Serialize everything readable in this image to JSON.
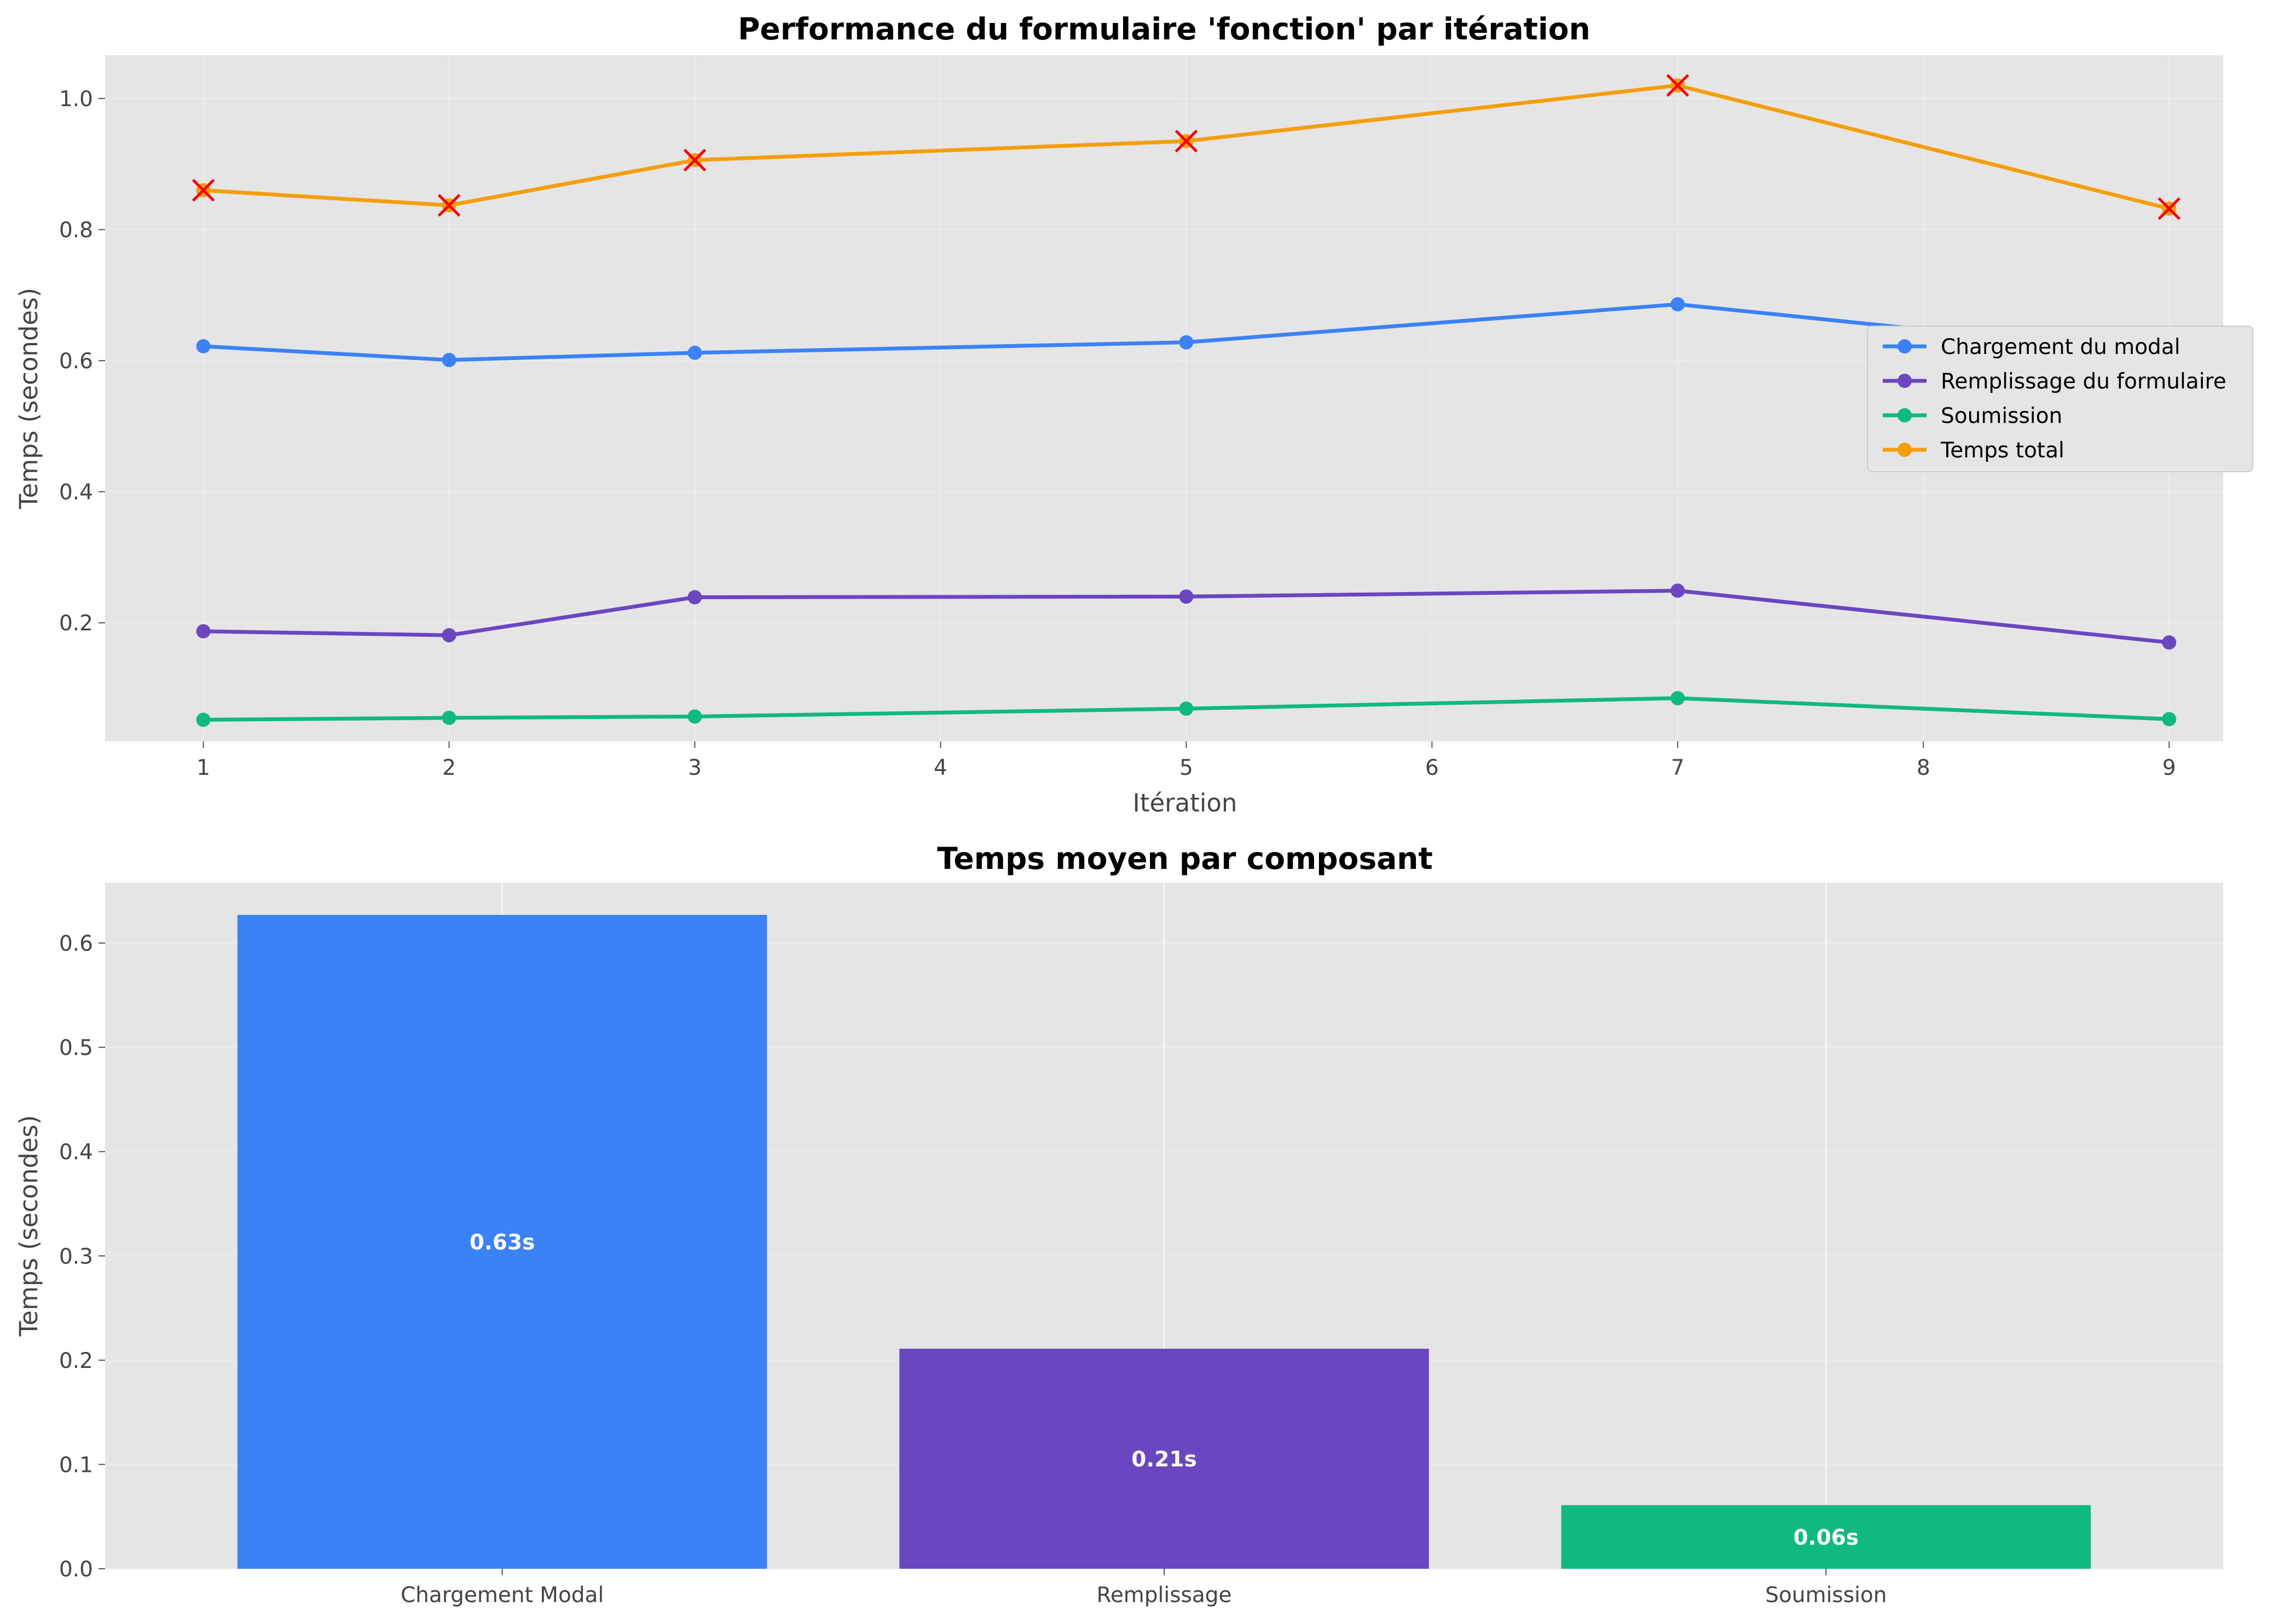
{
  "chart_data": [
    {
      "type": "line",
      "title": "Performance du formulaire 'fonction' par itération",
      "xlabel": "Itération",
      "ylabel": "Temps (secondes)",
      "x": [
        1,
        2,
        3,
        5,
        7,
        9
      ],
      "xticks": [
        1,
        2,
        3,
        4,
        5,
        6,
        7,
        8,
        9
      ],
      "xlim": [
        0.6,
        9.22
      ],
      "yticks": [
        0.2,
        0.4,
        0.6,
        0.8,
        1.0
      ],
      "ytick_labels": [
        "0.2",
        "0.4",
        "0.6",
        "0.8",
        "1.0"
      ],
      "ylim": [
        0.019,
        1.066
      ],
      "grid": true,
      "legend_position": "center-right",
      "series": [
        {
          "name": "Chargement du modal",
          "color": "#3b82f6",
          "values": [
            0.622,
            0.601,
            0.612,
            0.628,
            0.686,
            0.609
          ]
        },
        {
          "name": "Remplissage du formulaire",
          "color": "#6b46c1",
          "values": [
            0.187,
            0.181,
            0.239,
            0.24,
            0.249,
            0.17
          ]
        },
        {
          "name": "Soumission",
          "color": "#10b981",
          "values": [
            0.052,
            0.055,
            0.057,
            0.069,
            0.085,
            0.053
          ]
        },
        {
          "name": "Temps total",
          "color": "#f59e0b",
          "values": [
            0.86,
            0.837,
            0.906,
            0.935,
            1.02,
            0.832
          ],
          "highlight_marker": "x",
          "highlight_color": "#ff0000"
        }
      ]
    },
    {
      "type": "bar",
      "title": "Temps moyen par composant",
      "xlabel": "",
      "ylabel": "Temps (secondes)",
      "categories": [
        "Chargement Modal",
        "Remplissage",
        "Soumission"
      ],
      "values": [
        0.627,
        0.211,
        0.061
      ],
      "data_labels": [
        "0.63s",
        "0.21s",
        "0.06s"
      ],
      "colors": [
        "#3b82f6",
        "#6b46c1",
        "#10b981"
      ],
      "yticks": [
        0.0,
        0.1,
        0.2,
        0.3,
        0.4,
        0.5,
        0.6
      ],
      "ytick_labels": [
        "0.0",
        "0.1",
        "0.2",
        "0.3",
        "0.4",
        "0.5",
        "0.6"
      ],
      "ylim": [
        0,
        0.658
      ],
      "grid": true
    }
  ]
}
